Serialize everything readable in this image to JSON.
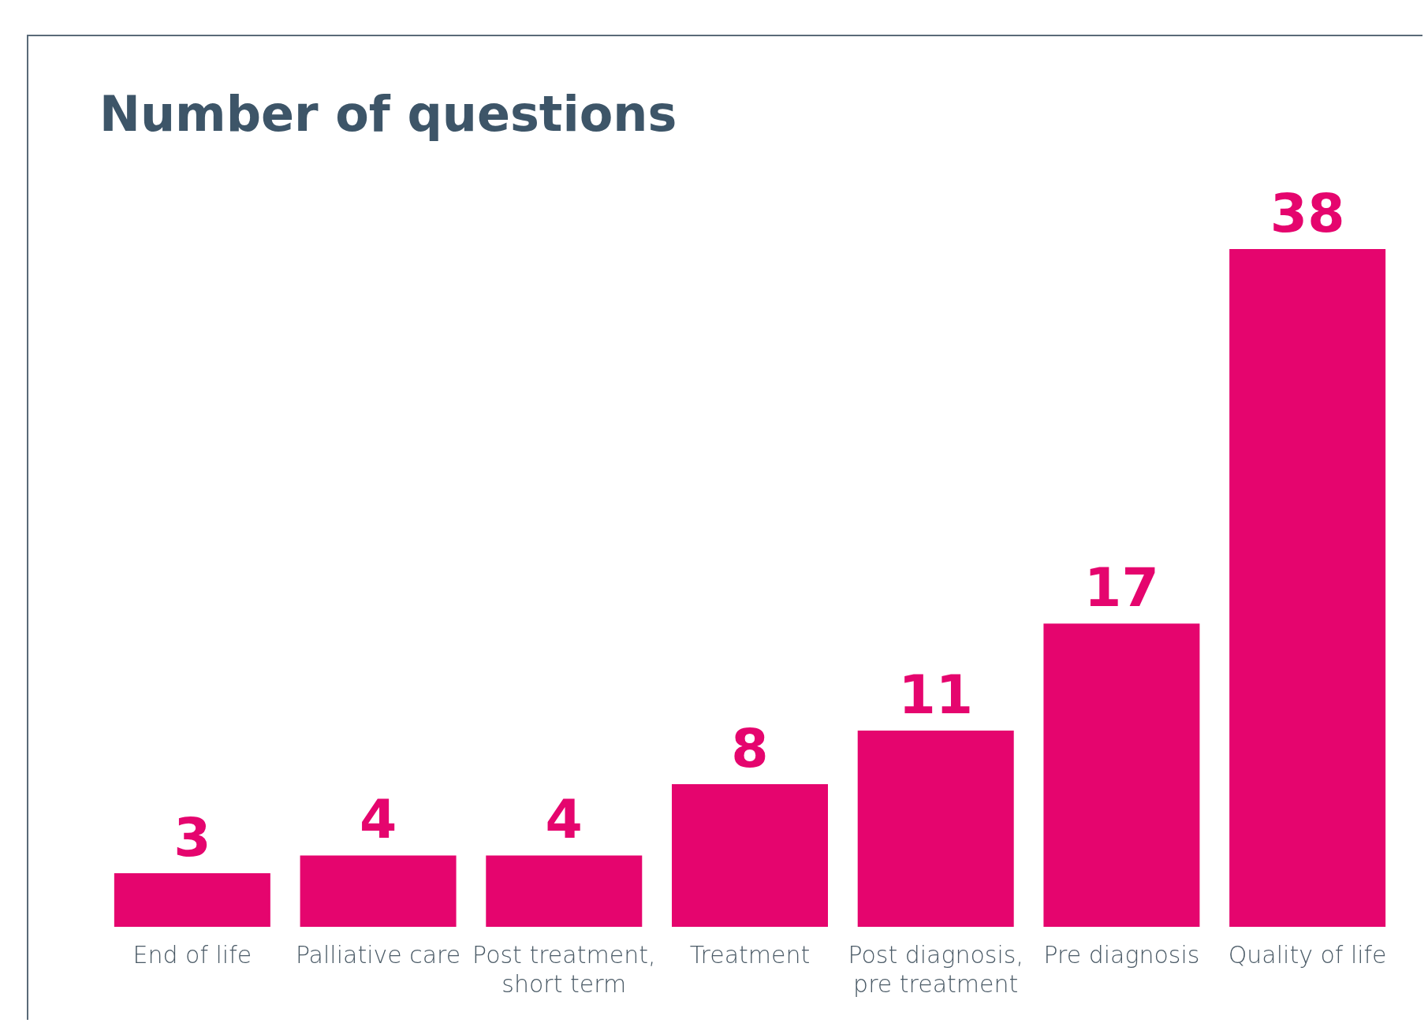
{
  "chart_data": {
    "type": "bar",
    "title": "Number of questions",
    "categories": [
      "End of life",
      "Palliative care",
      "Post treatment, short term",
      "Treatment",
      "Post diagnosis, pre treatment",
      "Pre diagnosis",
      "Quality of life"
    ],
    "values": [
      3,
      4,
      4,
      8,
      11,
      17,
      38
    ],
    "color": "#e5056e",
    "data_labels": true
  }
}
